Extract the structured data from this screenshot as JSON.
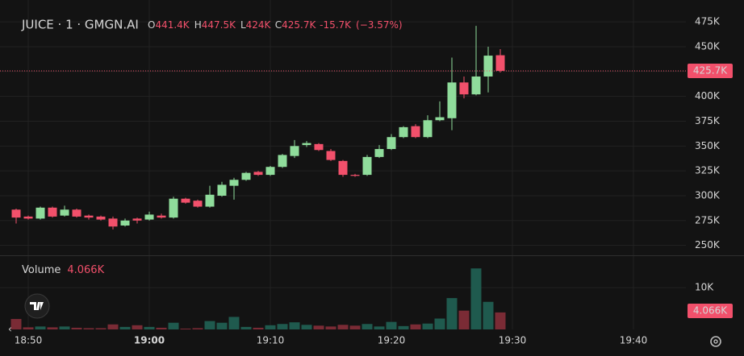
{
  "chart_data": {
    "type": "candlestick",
    "title": "JUICE · 1 · GMGN.AI",
    "header_labels": [
      "O",
      "H",
      "L",
      "C"
    ],
    "header_values": [
      "441.4K",
      "447.5K",
      "424K",
      "425.7K"
    ],
    "change_label": "-15.7K",
    "change_pct_label": "(−3.57%)",
    "x": [
      "18:49",
      "18:50",
      "18:51",
      "18:52",
      "18:53",
      "18:54",
      "18:55",
      "18:56",
      "18:57",
      "18:58",
      "18:59",
      "19:00",
      "19:01",
      "19:02",
      "19:03",
      "19:04",
      "19:05",
      "19:06",
      "19:07",
      "19:08",
      "19:09",
      "19:10",
      "19:11",
      "19:12",
      "19:13",
      "19:14",
      "19:15",
      "19:16",
      "19:17",
      "19:18",
      "19:19",
      "19:20",
      "19:21",
      "19:22",
      "19:23",
      "19:24",
      "19:25",
      "19:26",
      "19:27",
      "19:28",
      "19:29"
    ],
    "open": [
      286,
      279,
      277,
      288,
      280,
      286,
      280,
      279,
      277,
      270,
      277,
      276,
      280,
      278,
      297,
      295,
      289,
      300,
      310,
      316,
      324,
      321,
      329,
      340,
      351,
      352,
      345,
      335,
      321,
      321,
      339,
      347,
      359,
      370,
      359,
      376,
      378,
      414,
      402,
      420,
      441.4
    ],
    "high": [
      287,
      280,
      289,
      289,
      290,
      287,
      281,
      280,
      279,
      277,
      278,
      284,
      282,
      299,
      298,
      296,
      310,
      314,
      318,
      324,
      325,
      330,
      342,
      356,
      355,
      353,
      347,
      336,
      322,
      341,
      351,
      362,
      370,
      372,
      381,
      395,
      439,
      420,
      471,
      450,
      447.5
    ],
    "low": [
      272,
      276,
      276,
      278,
      279,
      278,
      276,
      275,
      266,
      269,
      272,
      275,
      277,
      277,
      292,
      288,
      288,
      299,
      296,
      315,
      320,
      320,
      328,
      338,
      349,
      345,
      335,
      319,
      319,
      320,
      338,
      346,
      358,
      358,
      358,
      375,
      366,
      398,
      401,
      404,
      424
    ],
    "close": [
      278,
      277,
      288,
      279,
      286,
      279,
      278,
      276,
      269,
      275,
      275,
      281,
      278,
      297,
      293,
      289,
      301,
      311,
      316,
      323,
      321,
      329,
      341,
      350,
      353,
      346,
      336,
      321,
      320,
      339,
      347,
      359,
      369,
      359,
      376,
      379,
      414,
      402,
      420,
      441,
      425.7
    ],
    "volume": [
      2.5,
      0.5,
      0.7,
      0.5,
      0.7,
      0.4,
      0.3,
      0.3,
      1.2,
      0.6,
      1.0,
      0.6,
      0.4,
      1.6,
      0.2,
      0.3,
      2.0,
      1.6,
      3.0,
      0.6,
      0.4,
      1.0,
      1.3,
      1.7,
      1.1,
      0.9,
      0.7,
      1.1,
      0.9,
      1.3,
      0.7,
      1.8,
      0.8,
      1.2,
      1.4,
      2.6,
      7.5,
      4.5,
      14.6,
      6.6,
      4.066
    ],
    "volume_title": "Volume",
    "volume_last_label": "4.066K",
    "ylim": [
      240,
      497
    ],
    "yticks": [
      {
        "value": 250,
        "label": "250K"
      },
      {
        "value": 275,
        "label": "275K"
      },
      {
        "value": 300,
        "label": "300K"
      },
      {
        "value": 325,
        "label": "325K"
      },
      {
        "value": 350,
        "label": "350K"
      },
      {
        "value": 375,
        "label": "375K"
      },
      {
        "value": 400,
        "label": "400K"
      },
      {
        "value": 425,
        "label": "425K"
      },
      {
        "value": 450,
        "label": "450K"
      },
      {
        "value": 475,
        "label": "475K"
      }
    ],
    "volume_ylim": [
      0,
      16
    ],
    "volume_ticks": [
      {
        "value": 10,
        "label": "10K"
      }
    ],
    "xticks": [
      "18:50",
      "19:00",
      "19:10",
      "19:20",
      "19:30",
      "19:40"
    ],
    "up_color": "#8fdc9b",
    "down_color": "#f2506b",
    "volume_up_color": "#1f5a4e",
    "volume_down_color": "#7a2b35",
    "grid": true
  }
}
